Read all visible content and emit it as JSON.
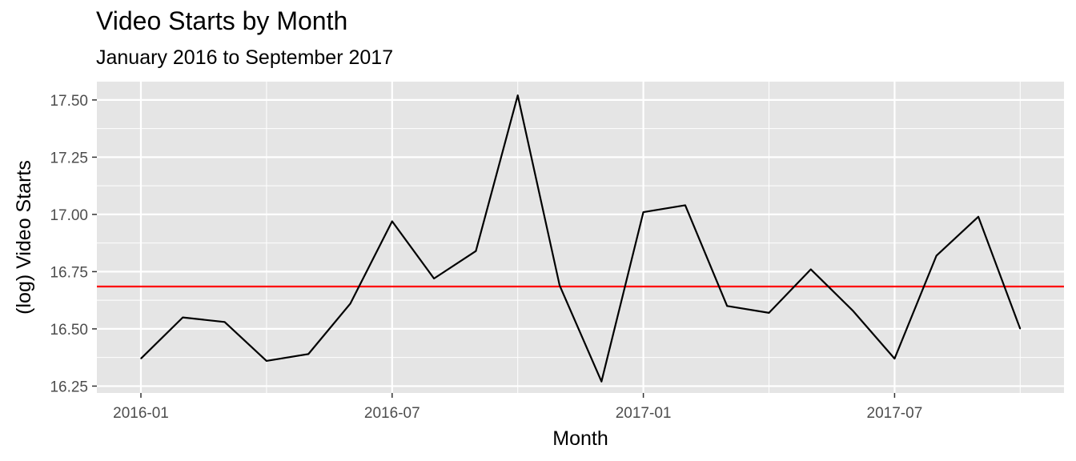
{
  "chart_data": {
    "type": "line",
    "title": "Video Starts by Month",
    "subtitle": "January 2016 to September 2017",
    "xlabel": "Month",
    "ylabel": "(log) Video Starts",
    "x_ticks": [
      "2016-01",
      "2016-07",
      "2017-01",
      "2017-07"
    ],
    "y_ticks": [
      "16.25",
      "16.50",
      "16.75",
      "17.00",
      "17.25",
      "17.50"
    ],
    "ylim": [
      16.22,
      17.58
    ],
    "grid": true,
    "x": [
      "2016-01",
      "2016-02",
      "2016-03",
      "2016-04",
      "2016-05",
      "2016-06",
      "2016-07",
      "2016-08",
      "2016-09",
      "2016-10",
      "2016-11",
      "2016-12",
      "2017-01",
      "2017-02",
      "2017-03",
      "2017-04",
      "2017-05",
      "2017-06",
      "2017-07",
      "2017-08",
      "2017-09",
      "2017-10"
    ],
    "series": [
      {
        "values": [
          16.37,
          16.55,
          16.53,
          16.36,
          16.39,
          16.61,
          16.97,
          16.72,
          16.84,
          17.52,
          16.69,
          16.27,
          17.01,
          17.04,
          16.6,
          16.57,
          16.76,
          16.58,
          16.37,
          16.82,
          16.99,
          16.5
        ],
        "color": "#000000"
      }
    ],
    "reference_line": {
      "y": 16.685,
      "color": "#ff0000"
    },
    "panel_background": "#e5e5e5",
    "grid_color": "#ffffff"
  }
}
